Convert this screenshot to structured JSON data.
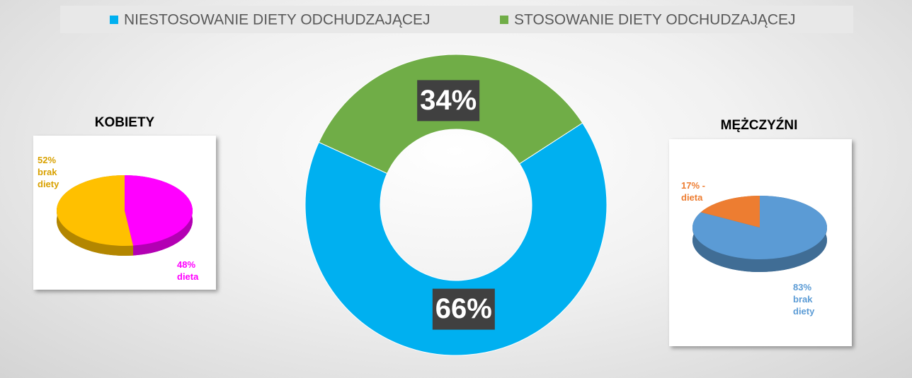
{
  "chart_data": [
    {
      "type": "donut",
      "categories": [
        "NIESTOSOWANIE DIETY ODCHUDZAJĄCEJ",
        "STOSOWANIE DIETY ODCHUDZAJĄCEJ"
      ],
      "values": [
        66,
        34
      ],
      "value_labels": [
        "66%",
        "34%"
      ],
      "colors": [
        "#00b0f0",
        "#70ad47"
      ],
      "legend": "top"
    },
    {
      "type": "pie3d",
      "title": "KOBIETY",
      "values": [
        48,
        52
      ],
      "value_labels": [
        "48% dieta",
        "52% brak diety"
      ],
      "colors": [
        "#ff00ff",
        "#ffc000"
      ],
      "label_colors": [
        "#ff00ff",
        "#d9a100"
      ]
    },
    {
      "type": "pie3d",
      "title": "MĘŻCZYŹNI",
      "values": [
        83,
        17
      ],
      "value_labels": [
        "83% brak diety",
        "17% - dieta"
      ],
      "colors": [
        "#5b9bd5",
        "#ed7d31"
      ],
      "label_colors": [
        "#5b9bd5",
        "#ed7d31"
      ]
    }
  ]
}
